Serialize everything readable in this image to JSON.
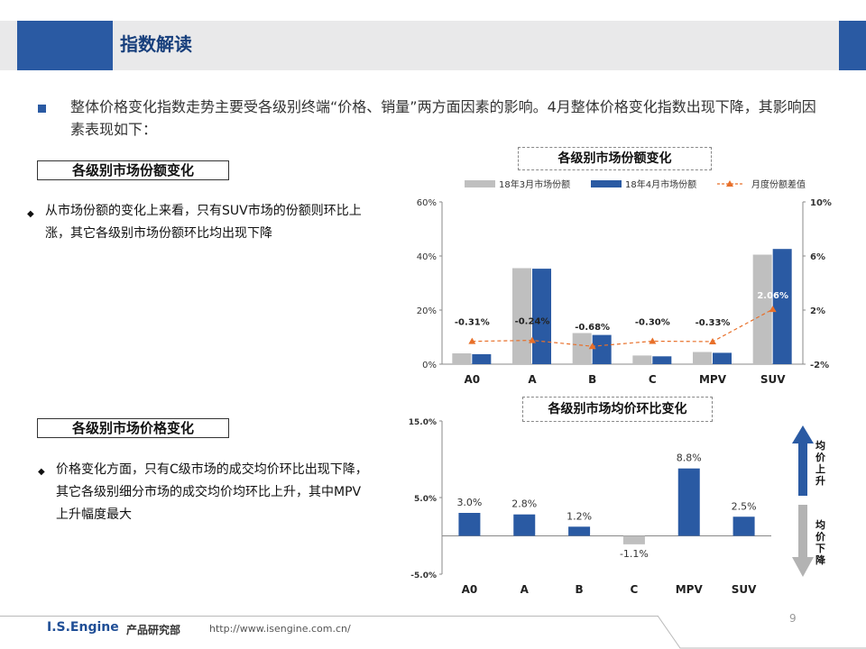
{
  "header": {
    "title": "指数解读"
  },
  "intro": "整体价格变化指数走势主要受各级别终端“价格、销量”两方面因素的影响。4月整体价格变化指数出现下降，其影响因素表现如下：",
  "section1": {
    "label": "各级别市场份额变化",
    "text": "从市场份额的变化上来看，只有SUV市场的份额则环比上涨，其它各级别市场份额环比均出现下降"
  },
  "section2": {
    "label": "各级别市场价格变化",
    "text": "价格变化方面，只有C级市场的成交均价环比出现下降，其它各级别细分市场的成交均价均环比上升，其中MPV上升幅度最大"
  },
  "arrows": {
    "up": "均价上升",
    "down": "均价下降"
  },
  "footer": {
    "brand": "I.S.Engine",
    "dept": "产品研究部",
    "url": "http://www.isengine.com.cn/",
    "page": "9"
  },
  "colors": {
    "blue": "#2a5aa3",
    "gray": "#bfbfbf",
    "orange": "#e8702a"
  },
  "chart_data": [
    {
      "type": "bar",
      "title": "各级别市场份额变化",
      "categories": [
        "A0",
        "A",
        "B",
        "C",
        "MPV",
        "SUV"
      ],
      "series": [
        {
          "name": "18年3月市场份额",
          "axis": "left",
          "values": [
            4.0,
            35.5,
            11.5,
            3.2,
            4.5,
            40.5
          ],
          "color": "#bfbfbf"
        },
        {
          "name": "18年4月市场份额",
          "axis": "left",
          "values": [
            3.7,
            35.3,
            10.8,
            2.9,
            4.2,
            42.6
          ],
          "color": "#2a5aa3"
        },
        {
          "name": "月度份额差值",
          "type": "line",
          "axis": "right",
          "values": [
            -0.31,
            -0.24,
            -0.68,
            -0.3,
            -0.33,
            2.06
          ],
          "labels": [
            "-0.31%",
            "-0.24%",
            "-0.68%",
            "-0.30%",
            "-0.33%",
            "2.06%"
          ],
          "color": "#e8702a"
        }
      ],
      "yticks_left": [
        "0%",
        "20%",
        "40%",
        "60%"
      ],
      "ylim_left": [
        0,
        60
      ],
      "yticks_right": [
        "-2%",
        "2%",
        "6%",
        "10%"
      ],
      "ylim_right": [
        -2,
        10
      ],
      "legend": "top"
    },
    {
      "type": "bar",
      "title": "各级别市场均价环比变化",
      "categories": [
        "A0",
        "A",
        "B",
        "C",
        "MPV",
        "SUV"
      ],
      "values": [
        3.0,
        2.8,
        1.2,
        -1.1,
        8.8,
        2.5
      ],
      "labels": [
        "3.0%",
        "2.8%",
        "1.2%",
        "-1.1%",
        "8.8%",
        "2.5%"
      ],
      "yticks": [
        "-5.0%",
        "5.0%",
        "15.0%"
      ],
      "ylim": [
        -5,
        15
      ]
    }
  ]
}
